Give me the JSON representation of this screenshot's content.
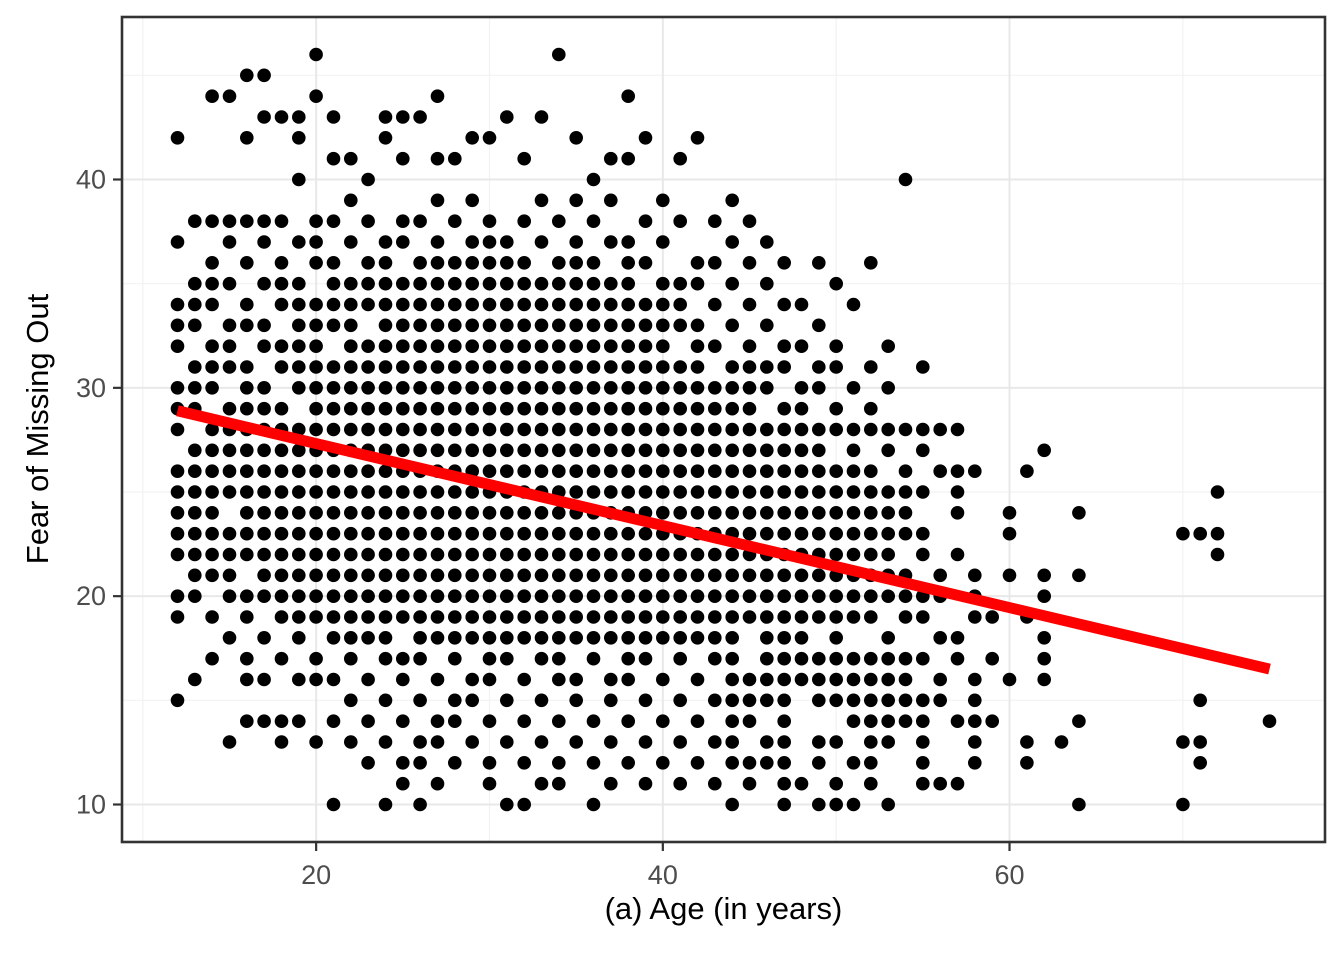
{
  "chart_data": {
    "type": "scatter",
    "title": "",
    "xlabel": "(a) Age (in years)",
    "ylabel": "Fear of Missing Out",
    "xlim": [
      8.8,
      78.2
    ],
    "ylim": [
      8.2,
      47.8
    ],
    "x_ticks": [
      20,
      40,
      60
    ],
    "y_ticks": [
      10,
      20,
      30,
      40
    ],
    "x_minor_ticks": [
      10,
      30,
      50,
      70
    ],
    "y_minor_ticks": [
      15,
      25,
      35,
      45
    ],
    "grid": true,
    "legend_position": "none",
    "panel_border_color": "#333333",
    "major_grid_color": "#e8e8e8",
    "minor_grid_color": "#f2f2f2",
    "tick_label_color": "#4d4d4d",
    "point_color": "#000000",
    "point_radius": 6.8,
    "trend_line": {
      "x1": 12,
      "y1": 28.9,
      "x2": 75,
      "y2": 16.5,
      "color": "#ff0000",
      "width": 11
    },
    "points_by_age": [
      {
        "age": 12,
        "fomo": [
          15,
          19,
          20,
          22,
          23,
          24,
          25,
          26,
          28,
          29,
          30,
          32,
          33,
          34,
          37,
          42
        ]
      },
      {
        "age": 13,
        "fomo": [
          16,
          20,
          21,
          22,
          23,
          24,
          25,
          26,
          27,
          29,
          30,
          31,
          33,
          34,
          35,
          38
        ]
      },
      {
        "age": 14,
        "fomo": [
          17,
          19,
          21,
          22,
          23,
          24,
          25,
          26,
          27,
          28,
          30,
          31,
          32,
          34,
          35,
          36,
          38,
          44
        ]
      },
      {
        "age": 15,
        "fomo": [
          13,
          18,
          20,
          21,
          22,
          23,
          25,
          26,
          27,
          28,
          29,
          31,
          32,
          33,
          35,
          37,
          38,
          44
        ]
      },
      {
        "age": 16,
        "fomo": [
          14,
          16,
          17,
          19,
          20,
          22,
          23,
          24,
          25,
          26,
          27,
          28,
          29,
          30,
          31,
          33,
          34,
          36,
          38,
          42,
          45
        ]
      },
      {
        "age": 17,
        "fomo": [
          14,
          16,
          18,
          20,
          21,
          22,
          23,
          24,
          25,
          26,
          27,
          28,
          29,
          30,
          32,
          33,
          35,
          37,
          38,
          43,
          45
        ]
      },
      {
        "age": 18,
        "fomo": [
          13,
          14,
          17,
          19,
          20,
          21,
          22,
          23,
          24,
          25,
          26,
          27,
          28,
          29,
          31,
          32,
          34,
          35,
          36,
          38,
          43
        ]
      },
      {
        "age": 19,
        "fomo": [
          14,
          16,
          18,
          19,
          20,
          21,
          22,
          23,
          24,
          25,
          26,
          27,
          28,
          30,
          31,
          32,
          33,
          34,
          35,
          37,
          40,
          42,
          43
        ]
      },
      {
        "age": 20,
        "fomo": [
          13,
          16,
          17,
          19,
          20,
          21,
          22,
          23,
          24,
          25,
          26,
          27,
          28,
          29,
          30,
          31,
          32,
          33,
          34,
          36,
          37,
          38,
          44,
          46
        ]
      },
      {
        "age": 21,
        "fomo": [
          10,
          14,
          16,
          18,
          19,
          20,
          21,
          22,
          23,
          24,
          25,
          26,
          27,
          28,
          29,
          30,
          31,
          33,
          34,
          35,
          36,
          38,
          41,
          43
        ]
      },
      {
        "age": 22,
        "fomo": [
          13,
          15,
          17,
          18,
          19,
          20,
          21,
          22,
          23,
          24,
          25,
          26,
          27,
          28,
          29,
          30,
          31,
          32,
          33,
          34,
          35,
          37,
          39,
          41
        ]
      },
      {
        "age": 23,
        "fomo": [
          12,
          14,
          16,
          18,
          19,
          20,
          21,
          22,
          23,
          24,
          25,
          26,
          27,
          28,
          29,
          30,
          31,
          32,
          34,
          35,
          36,
          38,
          40
        ]
      },
      {
        "age": 24,
        "fomo": [
          10,
          13,
          15,
          17,
          18,
          19,
          20,
          21,
          22,
          23,
          24,
          25,
          26,
          27,
          28,
          29,
          30,
          31,
          32,
          33,
          34,
          35,
          36,
          37,
          42,
          43
        ]
      },
      {
        "age": 25,
        "fomo": [
          11,
          12,
          14,
          16,
          17,
          19,
          20,
          21,
          22,
          23,
          24,
          25,
          26,
          27,
          28,
          29,
          30,
          31,
          32,
          33,
          34,
          35,
          37,
          38,
          41,
          43
        ]
      },
      {
        "age": 26,
        "fomo": [
          10,
          12,
          13,
          15,
          17,
          18,
          19,
          20,
          21,
          22,
          23,
          24,
          25,
          26,
          27,
          28,
          29,
          30,
          31,
          32,
          33,
          34,
          35,
          36,
          38,
          43
        ]
      },
      {
        "age": 27,
        "fomo": [
          11,
          13,
          14,
          16,
          18,
          19,
          20,
          21,
          22,
          23,
          24,
          25,
          26,
          27,
          28,
          29,
          30,
          31,
          32,
          33,
          34,
          35,
          36,
          37,
          39,
          41,
          44
        ]
      },
      {
        "age": 28,
        "fomo": [
          12,
          14,
          15,
          17,
          18,
          19,
          20,
          21,
          22,
          23,
          24,
          25,
          26,
          27,
          28,
          29,
          30,
          31,
          32,
          33,
          34,
          35,
          36,
          38,
          41
        ]
      },
      {
        "age": 29,
        "fomo": [
          13,
          15,
          16,
          18,
          19,
          20,
          21,
          22,
          23,
          24,
          25,
          26,
          27,
          28,
          29,
          30,
          31,
          32,
          33,
          34,
          35,
          36,
          37,
          39,
          42
        ]
      },
      {
        "age": 30,
        "fomo": [
          11,
          12,
          14,
          16,
          17,
          18,
          19,
          20,
          21,
          22,
          23,
          24,
          25,
          26,
          27,
          28,
          29,
          30,
          31,
          32,
          33,
          34,
          35,
          36,
          37,
          38,
          42
        ]
      },
      {
        "age": 31,
        "fomo": [
          10,
          13,
          15,
          17,
          18,
          19,
          20,
          21,
          22,
          23,
          24,
          25,
          26,
          27,
          28,
          29,
          30,
          31,
          32,
          33,
          34,
          35,
          36,
          37,
          43
        ]
      },
      {
        "age": 32,
        "fomo": [
          10,
          12,
          14,
          16,
          18,
          19,
          20,
          21,
          22,
          23,
          24,
          25,
          26,
          27,
          28,
          29,
          30,
          31,
          32,
          33,
          34,
          35,
          36,
          38,
          41
        ]
      },
      {
        "age": 33,
        "fomo": [
          11,
          13,
          15,
          17,
          18,
          19,
          20,
          21,
          22,
          23,
          24,
          25,
          26,
          27,
          28,
          29,
          30,
          31,
          32,
          33,
          34,
          35,
          37,
          39,
          43
        ]
      },
      {
        "age": 34,
        "fomo": [
          11,
          12,
          14,
          16,
          17,
          18,
          19,
          20,
          21,
          22,
          23,
          24,
          25,
          26,
          27,
          28,
          29,
          30,
          31,
          32,
          33,
          34,
          35,
          36,
          38,
          46
        ]
      },
      {
        "age": 35,
        "fomo": [
          13,
          15,
          16,
          18,
          19,
          20,
          21,
          22,
          23,
          24,
          25,
          26,
          27,
          28,
          29,
          30,
          31,
          32,
          33,
          34,
          35,
          36,
          37,
          39,
          42
        ]
      },
      {
        "age": 36,
        "fomo": [
          10,
          12,
          14,
          17,
          18,
          19,
          20,
          21,
          22,
          23,
          24,
          25,
          26,
          27,
          28,
          29,
          30,
          31,
          32,
          33,
          34,
          35,
          36,
          38,
          40
        ]
      },
      {
        "age": 37,
        "fomo": [
          11,
          13,
          15,
          16,
          18,
          19,
          20,
          21,
          22,
          23,
          24,
          25,
          26,
          27,
          28,
          29,
          30,
          31,
          32,
          33,
          34,
          35,
          37,
          39,
          41
        ]
      },
      {
        "age": 38,
        "fomo": [
          12,
          14,
          16,
          17,
          18,
          19,
          20,
          21,
          22,
          23,
          24,
          25,
          26,
          27,
          28,
          29,
          30,
          31,
          32,
          33,
          34,
          35,
          36,
          37,
          41,
          44
        ]
      },
      {
        "age": 39,
        "fomo": [
          11,
          13,
          15,
          17,
          18,
          19,
          20,
          21,
          22,
          23,
          24,
          25,
          26,
          27,
          28,
          29,
          30,
          31,
          32,
          33,
          34,
          36,
          38,
          42
        ]
      },
      {
        "age": 40,
        "fomo": [
          12,
          14,
          16,
          18,
          19,
          20,
          21,
          22,
          23,
          24,
          25,
          26,
          27,
          28,
          29,
          30,
          31,
          32,
          33,
          34,
          35,
          37,
          39
        ]
      },
      {
        "age": 41,
        "fomo": [
          11,
          13,
          15,
          17,
          18,
          19,
          20,
          21,
          22,
          23,
          24,
          25,
          26,
          27,
          28,
          29,
          30,
          31,
          33,
          34,
          35,
          38,
          41
        ]
      },
      {
        "age": 42,
        "fomo": [
          12,
          14,
          16,
          18,
          19,
          20,
          21,
          22,
          23,
          24,
          25,
          26,
          27,
          28,
          29,
          30,
          31,
          32,
          33,
          35,
          36,
          42
        ]
      },
      {
        "age": 43,
        "fomo": [
          11,
          13,
          15,
          17,
          18,
          19,
          20,
          21,
          22,
          23,
          24,
          25,
          26,
          27,
          28,
          29,
          30,
          32,
          34,
          36,
          38
        ]
      },
      {
        "age": 44,
        "fomo": [
          10,
          12,
          13,
          14,
          15,
          16,
          17,
          18,
          19,
          20,
          21,
          22,
          23,
          24,
          25,
          26,
          27,
          28,
          29,
          30,
          31,
          33,
          35,
          37,
          39
        ]
      },
      {
        "age": 45,
        "fomo": [
          11,
          12,
          14,
          15,
          16,
          19,
          20,
          21,
          22,
          23,
          24,
          25,
          26,
          27,
          28,
          29,
          30,
          31,
          32,
          34,
          36,
          38
        ]
      },
      {
        "age": 46,
        "fomo": [
          12,
          13,
          15,
          16,
          17,
          18,
          19,
          20,
          21,
          22,
          23,
          24,
          25,
          26,
          27,
          28,
          30,
          31,
          33,
          35,
          37
        ]
      },
      {
        "age": 47,
        "fomo": [
          10,
          11,
          12,
          13,
          14,
          15,
          16,
          17,
          18,
          19,
          20,
          21,
          22,
          23,
          24,
          25,
          26,
          27,
          28,
          29,
          31,
          32,
          34,
          36
        ]
      },
      {
        "age": 48,
        "fomo": [
          11,
          16,
          17,
          18,
          19,
          20,
          21,
          22,
          23,
          24,
          25,
          26,
          27,
          28,
          29,
          30,
          32,
          34
        ]
      },
      {
        "age": 49,
        "fomo": [
          10,
          12,
          13,
          15,
          16,
          17,
          19,
          20,
          21,
          22,
          23,
          24,
          25,
          26,
          27,
          28,
          30,
          31,
          33,
          36
        ]
      },
      {
        "age": 50,
        "fomo": [
          10,
          11,
          13,
          15,
          16,
          17,
          18,
          19,
          20,
          21,
          22,
          23,
          24,
          25,
          26,
          28,
          29,
          31,
          32,
          35
        ]
      },
      {
        "age": 51,
        "fomo": [
          10,
          12,
          14,
          15,
          16,
          17,
          19,
          20,
          21,
          22,
          23,
          24,
          25,
          26,
          27,
          28,
          30,
          34
        ]
      },
      {
        "age": 52,
        "fomo": [
          11,
          12,
          13,
          14,
          15,
          16,
          17,
          19,
          20,
          21,
          22,
          23,
          24,
          25,
          26,
          28,
          29,
          31,
          36
        ]
      },
      {
        "age": 53,
        "fomo": [
          10,
          13,
          14,
          15,
          16,
          17,
          18,
          20,
          21,
          22,
          23,
          24,
          25,
          27,
          28,
          30,
          32
        ]
      },
      {
        "age": 54,
        "fomo": [
          14,
          15,
          16,
          17,
          19,
          20,
          21,
          23,
          24,
          25,
          26,
          28,
          40
        ]
      },
      {
        "age": 55,
        "fomo": [
          11,
          12,
          13,
          14,
          15,
          17,
          19,
          20,
          22,
          23,
          25,
          27,
          28,
          31
        ]
      },
      {
        "age": 56,
        "fomo": [
          11,
          15,
          16,
          18,
          20,
          21,
          26,
          28
        ]
      },
      {
        "age": 57,
        "fomo": [
          11,
          14,
          17,
          18,
          22,
          24,
          25,
          26,
          28
        ]
      },
      {
        "age": 58,
        "fomo": [
          12,
          13,
          14,
          15,
          16,
          19,
          20,
          21,
          26
        ]
      },
      {
        "age": 59,
        "fomo": [
          14,
          17,
          19
        ]
      },
      {
        "age": 60,
        "fomo": [
          16,
          21,
          23,
          24
        ]
      },
      {
        "age": 61,
        "fomo": [
          12,
          13,
          19,
          26
        ]
      },
      {
        "age": 62,
        "fomo": [
          16,
          17,
          18,
          20,
          21,
          27
        ]
      },
      {
        "age": 63,
        "fomo": [
          13
        ]
      },
      {
        "age": 64,
        "fomo": [
          10,
          14,
          21,
          24
        ]
      },
      {
        "age": 70,
        "fomo": [
          10,
          13,
          23
        ]
      },
      {
        "age": 71,
        "fomo": [
          12,
          13,
          15,
          23
        ]
      },
      {
        "age": 72,
        "fomo": [
          22,
          23,
          25
        ]
      },
      {
        "age": 75,
        "fomo": [
          14
        ]
      }
    ]
  }
}
